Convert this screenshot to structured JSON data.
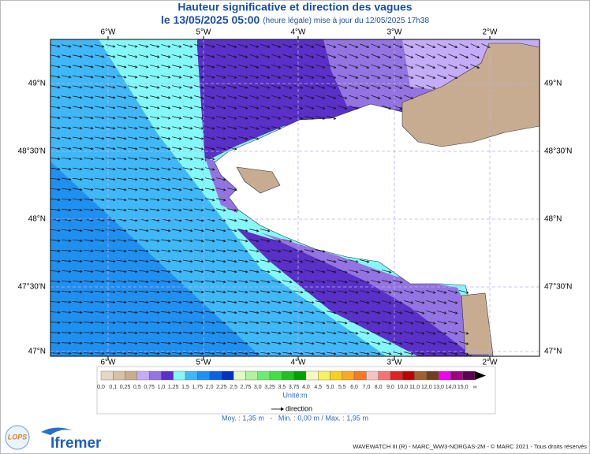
{
  "header": {
    "title": "Hauteur significative et direction des vagues",
    "date": "le 13/05/2025 05:00",
    "note": "(heure légale) mise à jour du 12/05/2025 17h38"
  },
  "map": {
    "longitudes": [
      "6°W",
      "5°W",
      "4°W",
      "3°W",
      "2°W"
    ],
    "latitudes": [
      "49°N",
      "48°30'N",
      "48°N",
      "47°30'N",
      "47°N"
    ]
  },
  "legend": {
    "labels": [
      "0,0",
      "0,1",
      "0,25",
      "0,5",
      "0,75",
      "1,0",
      "1,25",
      "1,5",
      "1,75",
      "2,0",
      "2,25",
      "2,5",
      "2,75",
      "3,0",
      "3,25",
      "3,5",
      "3,75",
      "4,0",
      "4,5",
      "5,0",
      "5,5",
      "6,0",
      "7,0",
      "8,0",
      "9,0",
      "10,0",
      "11,0",
      "12,0",
      "13,0",
      "14,0",
      "15,0",
      "∞"
    ],
    "colors": [
      "#e6d6c6",
      "#d6c0a8",
      "#c8ac92",
      "#c4acf8",
      "#9474e2",
      "#5a30c8",
      "#84f8f8",
      "#40b8f8",
      "#2090f0",
      "#0a62e0",
      "#0032c0",
      "#e2f8c2",
      "#b2f0a2",
      "#72e872",
      "#42e042",
      "#22c022",
      "#00a000",
      "#f8f8c2",
      "#f8f062",
      "#f8d022",
      "#f8a822",
      "#f87822",
      "#f8c2c2",
      "#f87272",
      "#e02222",
      "#c00000",
      "#a06030",
      "#704020",
      "#f000f0",
      "#a00080",
      "#600050"
    ],
    "unit": "Unité:m",
    "direction": "direction"
  },
  "stats": "Moy. : 1,35 m   -   Min. : 0,00 m / Max. : 1,95 m",
  "logos": {
    "lops": "LOPS",
    "ifremer": "Ifremer"
  },
  "footer": "WAVEWATCH III (R) - MARC_WW3-NORGAS-2M - © MARC 2021 - Tous droits réservés"
}
